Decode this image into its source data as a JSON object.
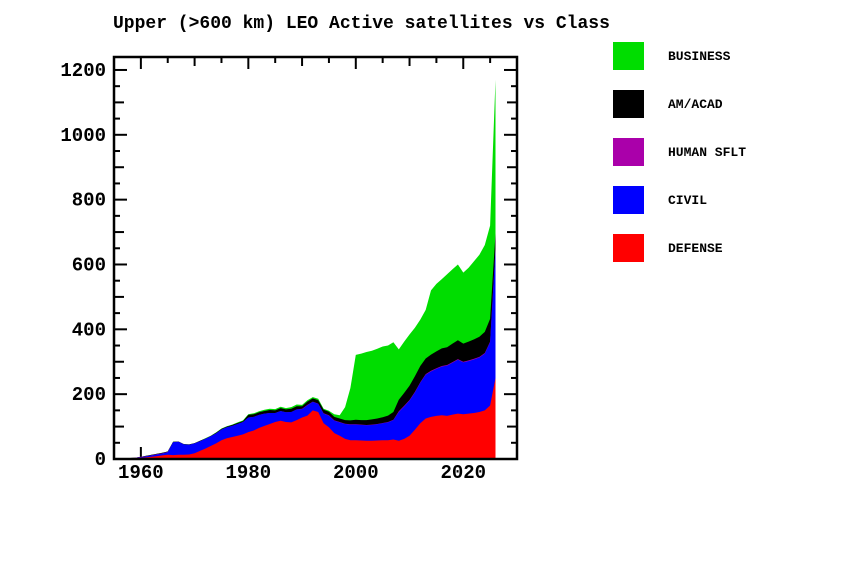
{
  "title": "Upper (>600 km) LEO Active satellites vs Class",
  "legend": [
    {
      "label": "BUSINESS",
      "color": "#00dd00"
    },
    {
      "label": "AM/ACAD",
      "color": "#000000"
    },
    {
      "label": "HUMAN SFLT",
      "color": "#aa00aa"
    },
    {
      "label": "CIVIL",
      "color": "#0000ff"
    },
    {
      "label": "DEFENSE",
      "color": "#ff0000"
    }
  ],
  "chart_data": {
    "type": "area",
    "stacked": true,
    "title": "Upper (>600 km) LEO Active satellites vs Class",
    "xlabel": "",
    "ylabel": "",
    "background": "#ffffff",
    "frame_color": "#000000",
    "grid": false,
    "legend_position": "right",
    "xlim": [
      1955,
      2030
    ],
    "ylim": [
      0,
      1240
    ],
    "xticks_major": [
      1960,
      1980,
      2000,
      2020
    ],
    "xtick_minor_step": 5,
    "yticks_major": [
      0,
      200,
      400,
      600,
      800,
      1000,
      1200
    ],
    "ytick_minor_step": 50,
    "x": [
      1957,
      1958,
      1959,
      1960,
      1961,
      1962,
      1963,
      1964,
      1965,
      1966,
      1967,
      1968,
      1969,
      1970,
      1971,
      1972,
      1973,
      1974,
      1975,
      1976,
      1977,
      1978,
      1979,
      1980,
      1981,
      1982,
      1983,
      1984,
      1985,
      1986,
      1987,
      1988,
      1989,
      1990,
      1991,
      1992,
      1993,
      1994,
      1995,
      1996,
      1997,
      1998,
      1999,
      2000,
      2001,
      2002,
      2003,
      2004,
      2005,
      2006,
      2007,
      2008,
      2009,
      2010,
      2011,
      2012,
      2013,
      2014,
      2015,
      2016,
      2017,
      2018,
      2019,
      2020,
      2021,
      2022,
      2023,
      2024,
      2025,
      2026
    ],
    "series": [
      {
        "name": "DEFENSE",
        "color": "#ff0000",
        "values": [
          1,
          2,
          2,
          4,
          5,
          7,
          9,
          11,
          13,
          12,
          13,
          13,
          14,
          18,
          25,
          32,
          40,
          48,
          58,
          64,
          68,
          72,
          76,
          83,
          88,
          96,
          102,
          108,
          114,
          118,
          114,
          113,
          120,
          128,
          134,
          150,
          145,
          110,
          98,
          80,
          72,
          62,
          58,
          58,
          57,
          56,
          56,
          57,
          58,
          58,
          60,
          56,
          62,
          72,
          90,
          110,
          125,
          130,
          133,
          135,
          133,
          137,
          140,
          138,
          140,
          142,
          145,
          150,
          165,
          250
        ]
      },
      {
        "name": "CIVIL",
        "color": "#0000ff",
        "values": [
          0,
          1,
          1,
          2,
          3,
          4,
          5,
          6,
          8,
          40,
          40,
          32,
          30,
          30,
          30,
          30,
          30,
          31,
          33,
          34,
          34,
          36,
          38,
          45,
          42,
          40,
          38,
          34,
          28,
          30,
          30,
          32,
          33,
          26,
          32,
          26,
          25,
          30,
          36,
          38,
          41,
          46,
          48,
          48,
          48,
          48,
          49,
          50,
          52,
          55,
          60,
          89,
          100,
          108,
          115,
          125,
          135,
          140,
          145,
          150,
          155,
          160,
          166,
          160,
          162,
          165,
          168,
          175,
          195,
          395
        ]
      },
      {
        "name": "HUMAN SFLT",
        "color": "#aa00aa",
        "values": [
          0,
          0,
          1,
          1,
          1,
          1,
          1,
          1,
          1,
          0,
          0,
          0,
          0,
          0,
          0,
          0,
          0,
          0,
          0,
          0,
          0,
          0,
          0,
          0,
          0,
          0,
          0,
          0,
          0,
          0,
          0,
          0,
          0,
          1,
          1,
          1,
          1,
          1,
          1,
          1,
          1,
          1,
          1,
          1,
          1,
          1,
          1,
          1,
          1,
          1,
          1,
          2,
          2,
          2,
          2,
          2,
          2,
          2,
          2,
          2,
          2,
          2,
          2,
          2,
          2,
          2,
          2,
          2,
          2,
          3
        ]
      },
      {
        "name": "AM/ACAD",
        "color": "#000000",
        "values": [
          0,
          0,
          0,
          0,
          1,
          1,
          1,
          1,
          1,
          1,
          1,
          1,
          1,
          1,
          1,
          1,
          1,
          2,
          2,
          2,
          3,
          3,
          3,
          8,
          8,
          8,
          8,
          9,
          8,
          9,
          9,
          10,
          10,
          8,
          10,
          10,
          10,
          11,
          11,
          11,
          11,
          11,
          12,
          14,
          14,
          15,
          16,
          17,
          18,
          20,
          24,
          36,
          40,
          44,
          48,
          50,
          48,
          50,
          52,
          54,
          55,
          57,
          58,
          56,
          58,
          60,
          62,
          65,
          70,
          48
        ]
      },
      {
        "name": "BUSINESS",
        "color": "#00dd00",
        "values": [
          0,
          0,
          0,
          0,
          0,
          0,
          0,
          0,
          0,
          0,
          0,
          0,
          0,
          0,
          0,
          1,
          1,
          1,
          1,
          1,
          1,
          2,
          2,
          2,
          3,
          3,
          4,
          4,
          4,
          4,
          4,
          5,
          5,
          4,
          4,
          4,
          5,
          3,
          3,
          8,
          10,
          40,
          100,
          200,
          205,
          210,
          212,
          215,
          218,
          216,
          215,
          155,
          158,
          158,
          150,
          143,
          150,
          198,
          208,
          214,
          225,
          229,
          234,
          219,
          228,
          241,
          253,
          268,
          288,
          474
        ]
      }
    ]
  }
}
